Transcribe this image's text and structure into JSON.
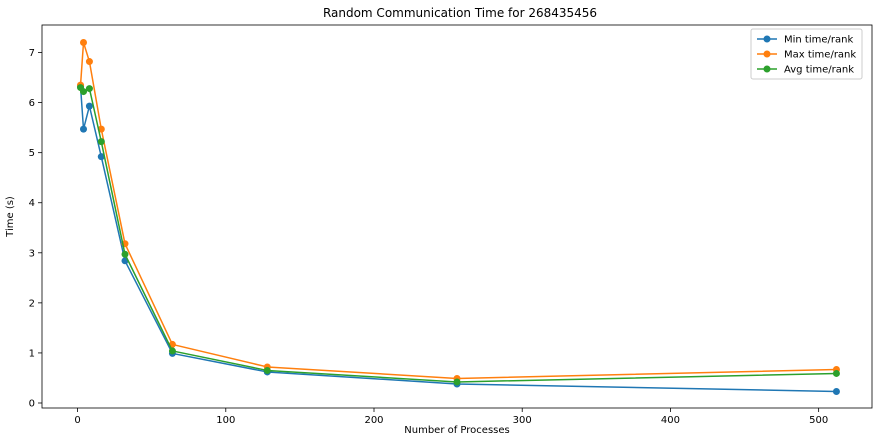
{
  "chart_data": {
    "type": "line",
    "title": "Random Communication Time for 268435456",
    "xlabel": "Number of Processes",
    "ylabel": "Time (s)",
    "xlim": [
      -24,
      536
    ],
    "ylim": [
      -0.1,
      7.55
    ],
    "xticks": [
      0,
      100,
      200,
      300,
      400,
      500
    ],
    "yticks": [
      0,
      1,
      2,
      3,
      4,
      5,
      6,
      7
    ],
    "grid": false,
    "legend_position": "top-right",
    "x": [
      2,
      4,
      8,
      16,
      32,
      64,
      128,
      256,
      512
    ],
    "series": [
      {
        "name": "Min time/rank",
        "color": "#1f77b4",
        "values": [
          6.32,
          5.47,
          5.93,
          4.92,
          2.84,
          0.99,
          0.62,
          0.38,
          0.23
        ]
      },
      {
        "name": "Max time/rank",
        "color": "#ff7f0e",
        "values": [
          6.35,
          7.2,
          6.82,
          5.47,
          3.18,
          1.17,
          0.72,
          0.49,
          0.67
        ]
      },
      {
        "name": "Avg time/rank",
        "color": "#2ca02c",
        "values": [
          6.3,
          6.22,
          6.28,
          5.22,
          2.97,
          1.04,
          0.65,
          0.42,
          0.59
        ]
      }
    ]
  }
}
